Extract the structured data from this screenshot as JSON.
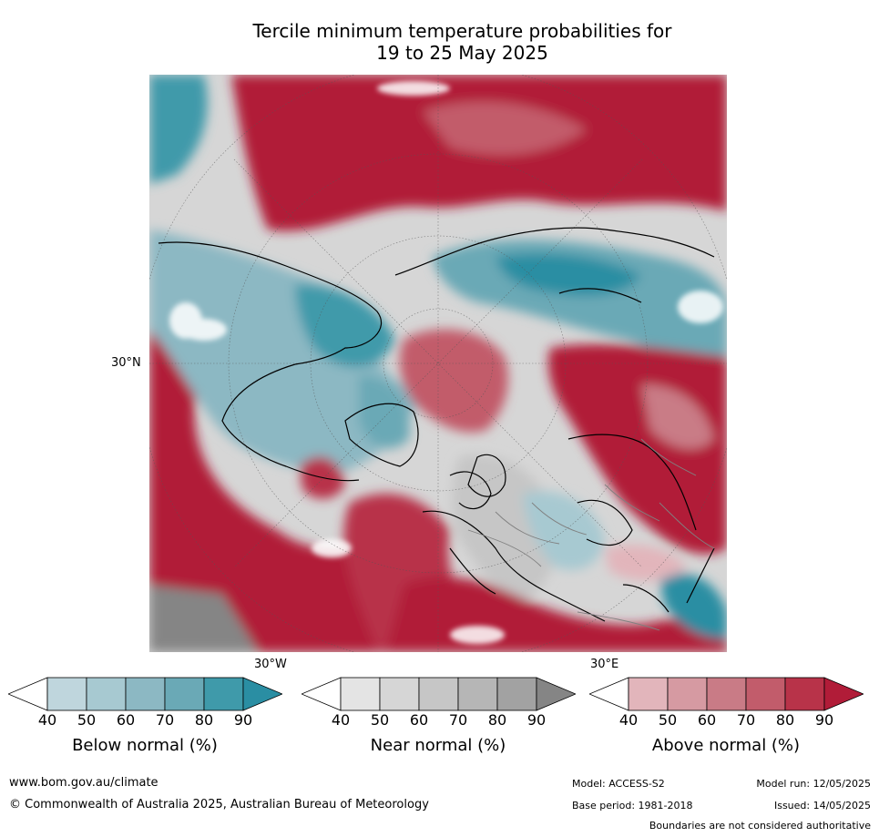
{
  "title_line1": "Tercile minimum temperature probabilities for",
  "title_line2": "19 to 25 May 2025",
  "map": {
    "projection": "north-polar-stereographic",
    "lat_label": "30°N",
    "lon_label_left": "30°W",
    "lon_label_right": "30°E"
  },
  "colorbars": [
    {
      "name": "Below normal (%)",
      "ticks": [
        "40",
        "50",
        "60",
        "70",
        "80",
        "90"
      ],
      "colors": [
        "#ffffff",
        "#bfd6dd",
        "#a7c9d1",
        "#8cb8c3",
        "#6aa9b6",
        "#3f9aaa",
        "#2a8ea3"
      ]
    },
    {
      "name": "Near normal (%)",
      "ticks": [
        "40",
        "50",
        "60",
        "70",
        "80",
        "90"
      ],
      "colors": [
        "#ffffff",
        "#e4e4e4",
        "#d6d6d6",
        "#c6c6c6",
        "#b6b6b6",
        "#a2a2a2",
        "#858585"
      ]
    },
    {
      "name": "Above normal (%)",
      "ticks": [
        "40",
        "50",
        "60",
        "70",
        "80",
        "90"
      ],
      "colors": [
        "#ffffff",
        "#e2b5bb",
        "#d69aa2",
        "#c97b86",
        "#c25c6b",
        "#b83349",
        "#b11c38"
      ]
    }
  ],
  "footer": {
    "website": "www.bom.gov.au/climate",
    "copyright": "© Commonwealth of Australia 2025, Australian Bureau of Meteorology",
    "model": "Model: ACCESS-S2",
    "base_period": "Base period: 1981-2018",
    "model_run": "Model run: 12/05/2025",
    "issued": "Issued: 14/05/2025",
    "disclaimer": "Boundaries are not considered authoritative"
  }
}
